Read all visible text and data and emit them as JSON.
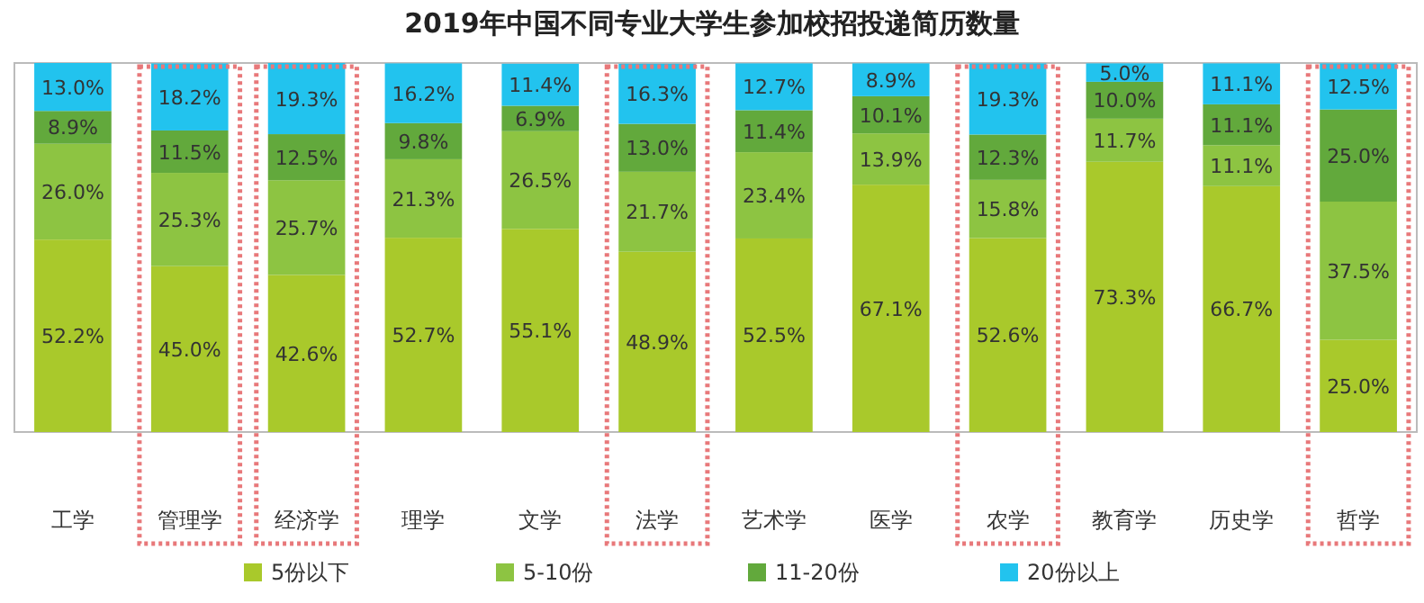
{
  "chart_data": {
    "type": "bar",
    "stacked": true,
    "title": "2019年中国不同专业大学生参加校招投递简历数量",
    "categories": [
      "工学",
      "管理学",
      "经济学",
      "理学",
      "文学",
      "法学",
      "艺术学",
      "医学",
      "农学",
      "教育学",
      "历史学",
      "哲学"
    ],
    "series": [
      {
        "name": "5份以下",
        "color": "#a9c92b",
        "values": [
          52.2,
          45.0,
          42.6,
          52.7,
          55.1,
          48.9,
          52.5,
          67.1,
          52.6,
          73.3,
          66.7,
          25.0
        ],
        "value_labels": [
          "52.2%",
          "45.0%",
          "42.6%",
          "52.7%",
          "55.1%",
          "48.9%",
          "52.5%",
          "67.1%",
          "52.6%",
          "73.3%",
          "66.7%",
          "25.0%"
        ]
      },
      {
        "name": "5-10份",
        "color": "#8dc442",
        "values": [
          26.0,
          25.3,
          25.7,
          21.3,
          26.5,
          21.7,
          23.4,
          13.9,
          15.8,
          11.7,
          11.1,
          37.5
        ],
        "value_labels": [
          "26.0%",
          "25.3%",
          "25.7%",
          "21.3%",
          "26.5%",
          "21.7%",
          "23.4%",
          "13.9%",
          "15.8%",
          "11.7%",
          "11.1%",
          "37.5%"
        ]
      },
      {
        "name": "11-20份",
        "color": "#62a93c",
        "values": [
          8.9,
          11.5,
          12.5,
          9.8,
          6.9,
          13.0,
          11.4,
          10.1,
          12.3,
          10.0,
          11.1,
          25.0
        ],
        "value_labels": [
          "8.9%",
          "11.5%",
          "12.5%",
          "9.8%",
          "6.9%",
          "13.0%",
          "11.4%",
          "10.1%",
          "12.3%",
          "10.0%",
          "11.1%",
          "25.0%"
        ]
      },
      {
        "name": "20份以上",
        "color": "#22c3ee",
        "values": [
          13.0,
          18.2,
          19.3,
          16.2,
          11.4,
          16.3,
          12.7,
          8.9,
          19.3,
          5.0,
          11.1,
          12.5
        ],
        "value_labels": [
          "13.0%",
          "18.2%",
          "19.3%",
          "16.2%",
          "11.4%",
          "16.3%",
          "12.7%",
          "8.9%",
          "19.3%",
          "5.0%",
          "11.1%",
          "12.5%"
        ]
      }
    ],
    "legend": "bottom"
  }
}
